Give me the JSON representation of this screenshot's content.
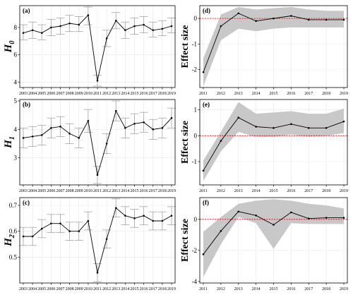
{
  "chart_data": [
    {
      "type": "line",
      "panel_label": "(a)",
      "ylabel_main": "H",
      "ylabel_sub": "0",
      "x": [
        "2003",
        "2004",
        "2005",
        "2006",
        "2007",
        "2008",
        "2009",
        "2010",
        "2011",
        "2012",
        "2013",
        "2014",
        "2015",
        "2016",
        "2017",
        "2018",
        "2019"
      ],
      "values": [
        7.6,
        7.8,
        7.6,
        8.0,
        8.1,
        8.3,
        8.2,
        8.9,
        4.1,
        7.2,
        8.5,
        7.8,
        8.1,
        8.2,
        7.8,
        7.9,
        8.1
      ],
      "lower": [
        7.1,
        7.2,
        7.1,
        7.4,
        7.5,
        7.7,
        7.7,
        8.2,
        3.7,
        6.6,
        7.9,
        7.2,
        7.5,
        7.6,
        7.3,
        7.4,
        7.6
      ],
      "upper": [
        8.2,
        8.4,
        8.2,
        8.6,
        8.7,
        8.9,
        8.8,
        9.5,
        4.5,
        7.8,
        9.1,
        8.4,
        8.7,
        8.8,
        8.4,
        8.5,
        8.7
      ],
      "ylim": [
        3.6,
        9.6
      ],
      "yticks": [
        "4",
        "6",
        "8"
      ],
      "grid": true
    },
    {
      "type": "line",
      "panel_label": "(b)",
      "ylabel_main": "H",
      "ylabel_sub": "1",
      "x": [
        "2003",
        "2004",
        "2005",
        "2006",
        "2007",
        "2008",
        "2009",
        "2010",
        "2011",
        "2012",
        "2013",
        "2014",
        "2015",
        "2016",
        "2017",
        "2018",
        "2019"
      ],
      "values": [
        3.7,
        3.75,
        3.8,
        4.05,
        4.1,
        3.85,
        3.7,
        4.3,
        2.4,
        3.5,
        4.65,
        4.05,
        4.2,
        4.25,
        4.0,
        4.05,
        4.4
      ],
      "lower": [
        3.35,
        3.4,
        3.45,
        3.7,
        3.75,
        3.5,
        3.35,
        3.9,
        2.1,
        3.15,
        4.3,
        3.7,
        3.85,
        3.9,
        3.65,
        3.7,
        4.05
      ],
      "upper": [
        4.05,
        4.1,
        4.15,
        4.4,
        4.45,
        4.2,
        4.05,
        4.7,
        2.7,
        3.85,
        5.0,
        4.4,
        4.55,
        4.6,
        4.35,
        4.4,
        4.75
      ],
      "ylim": [
        2.05,
        5.05
      ],
      "yticks": [
        "3",
        "4",
        "5"
      ],
      "grid": true
    },
    {
      "type": "line",
      "panel_label": "(c)",
      "ylabel_main": "H",
      "ylabel_sub": "2",
      "x": [
        "2003",
        "2004",
        "2005",
        "2006",
        "2007",
        "2008",
        "2009",
        "2010",
        "2011",
        "2012",
        "2013",
        "2014",
        "2015",
        "2016",
        "2017",
        "2018",
        "2019"
      ],
      "values": [
        0.58,
        0.58,
        0.61,
        0.63,
        0.63,
        0.6,
        0.6,
        0.64,
        0.44,
        0.57,
        0.69,
        0.66,
        0.65,
        0.66,
        0.64,
        0.64,
        0.66
      ],
      "lower": [
        0.545,
        0.545,
        0.575,
        0.595,
        0.595,
        0.565,
        0.565,
        0.605,
        0.405,
        0.535,
        0.655,
        0.625,
        0.615,
        0.625,
        0.605,
        0.605,
        0.625
      ],
      "upper": [
        0.615,
        0.615,
        0.645,
        0.665,
        0.665,
        0.635,
        0.635,
        0.675,
        0.475,
        0.605,
        0.725,
        0.695,
        0.685,
        0.695,
        0.675,
        0.675,
        0.695
      ],
      "ylim": [
        0.4,
        0.73
      ],
      "yticks": [
        "0.5",
        "0.6",
        "0.7"
      ],
      "grid": true
    },
    {
      "type": "area",
      "panel_label": "(d)",
      "ylabel": "Effect size",
      "x": [
        "2011",
        "2012",
        "2013",
        "2014",
        "2015",
        "2016",
        "2017",
        "2018",
        "2019"
      ],
      "values": [
        -2.1,
        -0.3,
        0.2,
        -0.1,
        0.0,
        0.1,
        -0.05,
        -0.05,
        -0.05
      ],
      "lower": [
        -2.65,
        -0.85,
        -0.4,
        -0.5,
        -0.4,
        -0.35,
        -0.35,
        -0.35,
        -0.35
      ],
      "upper": [
        -1.55,
        0.15,
        0.45,
        0.35,
        0.4,
        0.45,
        0.35,
        0.3,
        0.3
      ],
      "reference_line": 0,
      "ylim": [
        -2.7,
        0.5
      ],
      "yticks": [
        "-2",
        "-1",
        "0"
      ],
      "grid": true
    },
    {
      "type": "area",
      "panel_label": "(e)",
      "ylabel": "Effect size",
      "x": [
        "2011",
        "2012",
        "2013",
        "2014",
        "2015",
        "2016",
        "2017",
        "2018",
        "2019"
      ],
      "values": [
        -1.35,
        -0.2,
        0.7,
        0.35,
        0.3,
        0.45,
        0.3,
        0.3,
        0.55
      ],
      "lower": [
        -1.75,
        -0.6,
        0.15,
        -0.05,
        -0.05,
        0.05,
        -0.05,
        0.0,
        0.1
      ],
      "upper": [
        -0.95,
        0.15,
        1.3,
        0.85,
        0.9,
        0.95,
        0.85,
        0.85,
        1.05
      ],
      "reference_line": 0,
      "ylim": [
        -1.9,
        1.4
      ],
      "yticks": [
        "-1",
        "0",
        "1"
      ],
      "grid": true
    },
    {
      "type": "area",
      "panel_label": "(f)",
      "ylabel": "Effect size",
      "x": [
        "2011",
        "2012",
        "2013",
        "2014",
        "2015",
        "2016",
        "2017",
        "2018",
        "2019"
      ],
      "values": [
        -2.25,
        -0.75,
        0.5,
        0.25,
        -0.35,
        0.45,
        0.05,
        0.1,
        0.1
      ],
      "lower": [
        -3.7,
        -1.6,
        0.15,
        -0.25,
        -1.9,
        -0.25,
        -0.3,
        -0.3,
        -0.3
      ],
      "upper": [
        -0.8,
        0.15,
        1.0,
        1.2,
        1.3,
        1.2,
        1.0,
        0.9,
        0.7
      ],
      "reference_line": 0,
      "ylim": [
        -4.1,
        1.4
      ],
      "yticks": [
        "-4",
        "-2",
        "0"
      ],
      "grid": true
    }
  ]
}
